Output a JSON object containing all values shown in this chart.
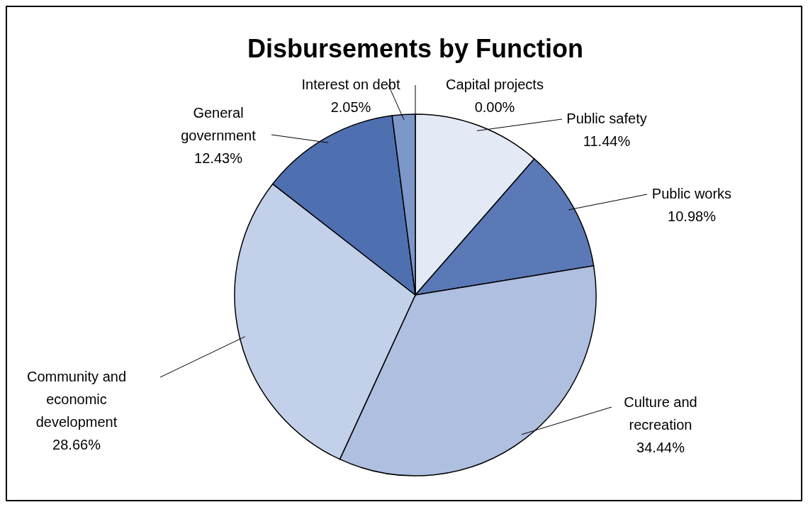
{
  "chart_data": {
    "type": "pie",
    "title": "Disbursements by Function",
    "categories": [
      "Capital projects",
      "Public safety",
      "Public works",
      "Culture and recreation",
      "Community and economic development",
      "General government",
      "Interest on debt"
    ],
    "values": [
      0.0,
      11.44,
      10.98,
      34.44,
      28.66,
      12.43,
      2.05
    ],
    "value_labels": [
      "0.00%",
      "11.44%",
      "10.98%",
      "34.44%",
      "28.66%",
      "12.43%",
      "2.05%"
    ],
    "colors": [
      "#2f5597",
      "#e4eaf5",
      "#5a79b6",
      "#aebfe0",
      "#c3d0e9",
      "#4f70b0",
      "#7d97c9"
    ]
  }
}
